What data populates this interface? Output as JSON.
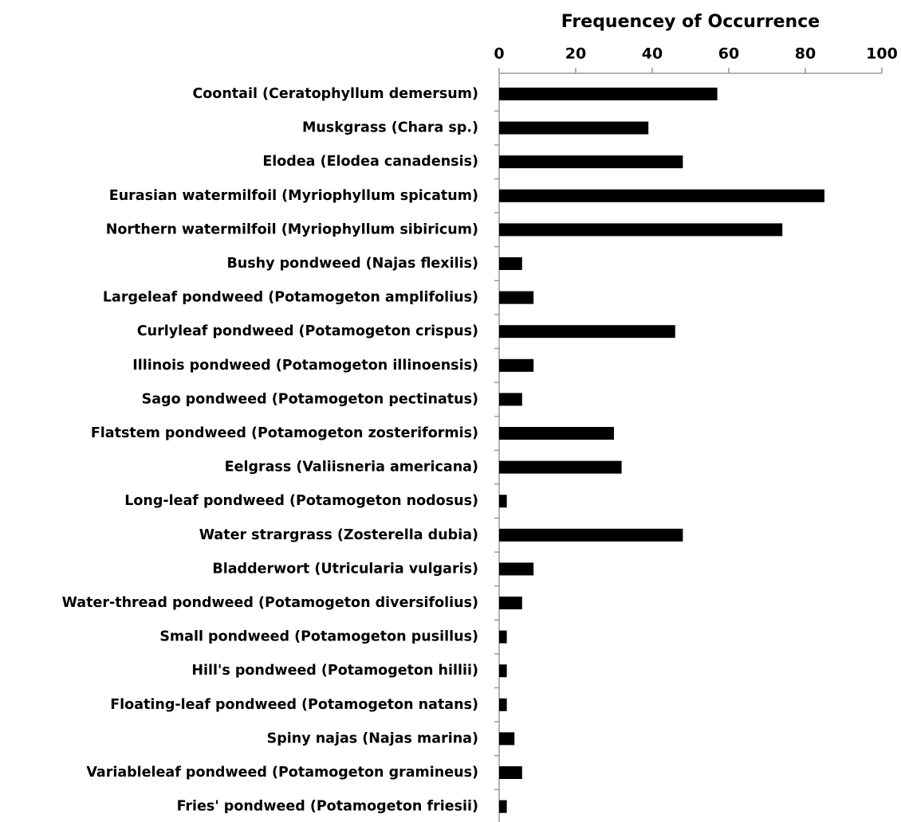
{
  "chart_data": {
    "type": "bar",
    "orientation": "horizontal",
    "x_label": "Frequencey of Occurrence",
    "categories": [
      "Coontail (Ceratophyllum demersum)",
      "Muskgrass (Chara sp.)",
      "Elodea (Elodea canadensis)",
      "Eurasian watermilfoil (Myriophyllum spicatum)",
      "Northern watermilfoil (Myriophyllum sibiricum)",
      "Bushy pondweed (Najas flexilis)",
      "Largeleaf pondweed (Potamogeton amplifolius)",
      "Curlyleaf pondweed (Potamogeton crispus)",
      "Illinois pondweed (Potamogeton illinoensis)",
      "Sago pondweed (Potamogeton pectinatus)",
      "Flatstem pondweed (Potamogeton zosteriformis)",
      "Eelgrass (Valiisneria americana)",
      "Long-leaf pondweed (Potamogeton nodosus)",
      "Water strargrass (Zosterella dubia)",
      "Bladderwort (Utricularia vulgaris)",
      "Water-thread pondweed (Potamogeton diversifolius)",
      "Small pondweed (Potamogeton pusillus)",
      "Hill's pondweed (Potamogeton hillii)",
      "Floating-leaf pondweed (Potamogeton natans)",
      "Spiny najas (Najas marina)",
      "Variableleaf pondweed (Potamogeton gramineus)",
      "Fries' pondweed (Potamogeton friesii)"
    ],
    "values": [
      57,
      39,
      48,
      85,
      74,
      6,
      9,
      46,
      9,
      6,
      30,
      32,
      2,
      48,
      9,
      6,
      2,
      2,
      2,
      4,
      6,
      2
    ],
    "color": "#000000",
    "xlim": [
      0,
      100
    ],
    "xticks": [
      0,
      20,
      40,
      60,
      80,
      100
    ]
  }
}
